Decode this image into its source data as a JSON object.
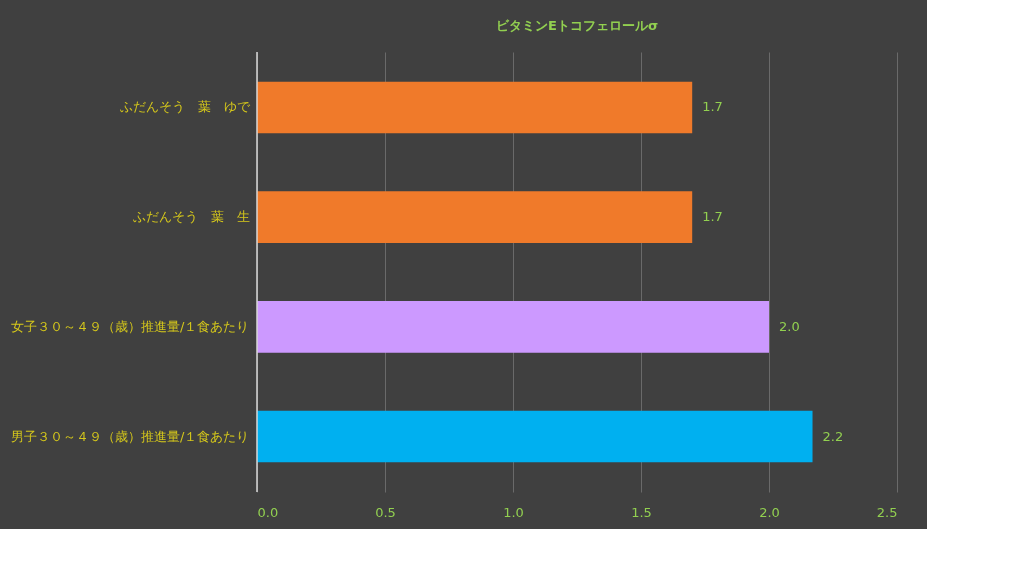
{
  "chart_data": {
    "type": "bar",
    "orientation": "horizontal",
    "title": "ビタミンEトコフェロールσ",
    "categories": [
      "ふだんそう　葉　ゆで",
      "ふだんそう　葉　生",
      "女子３０～４９（歳）推進量/１食あたり",
      "男子３０～４９（歳）推進量/１食あたり"
    ],
    "values": [
      1.7,
      1.7,
      2.0,
      2.17
    ],
    "value_labels": [
      "1.7",
      "1.7",
      "2.0",
      "2.2"
    ],
    "colors": [
      "#f07a2a",
      "#f07a2a",
      "#cc99ff",
      "#00b0f0"
    ],
    "xlim": [
      0,
      2.5
    ],
    "xticks": [
      {
        "value": 0,
        "label": "0.0"
      },
      {
        "value": 0.5,
        "label": "0.5"
      },
      {
        "value": 1,
        "label": "1.0"
      },
      {
        "value": 1.5,
        "label": "1.5"
      },
      {
        "value": 2,
        "label": "2.0"
      },
      {
        "value": 2.5,
        "label": "2.5"
      }
    ],
    "grid": "x",
    "legend": false
  }
}
